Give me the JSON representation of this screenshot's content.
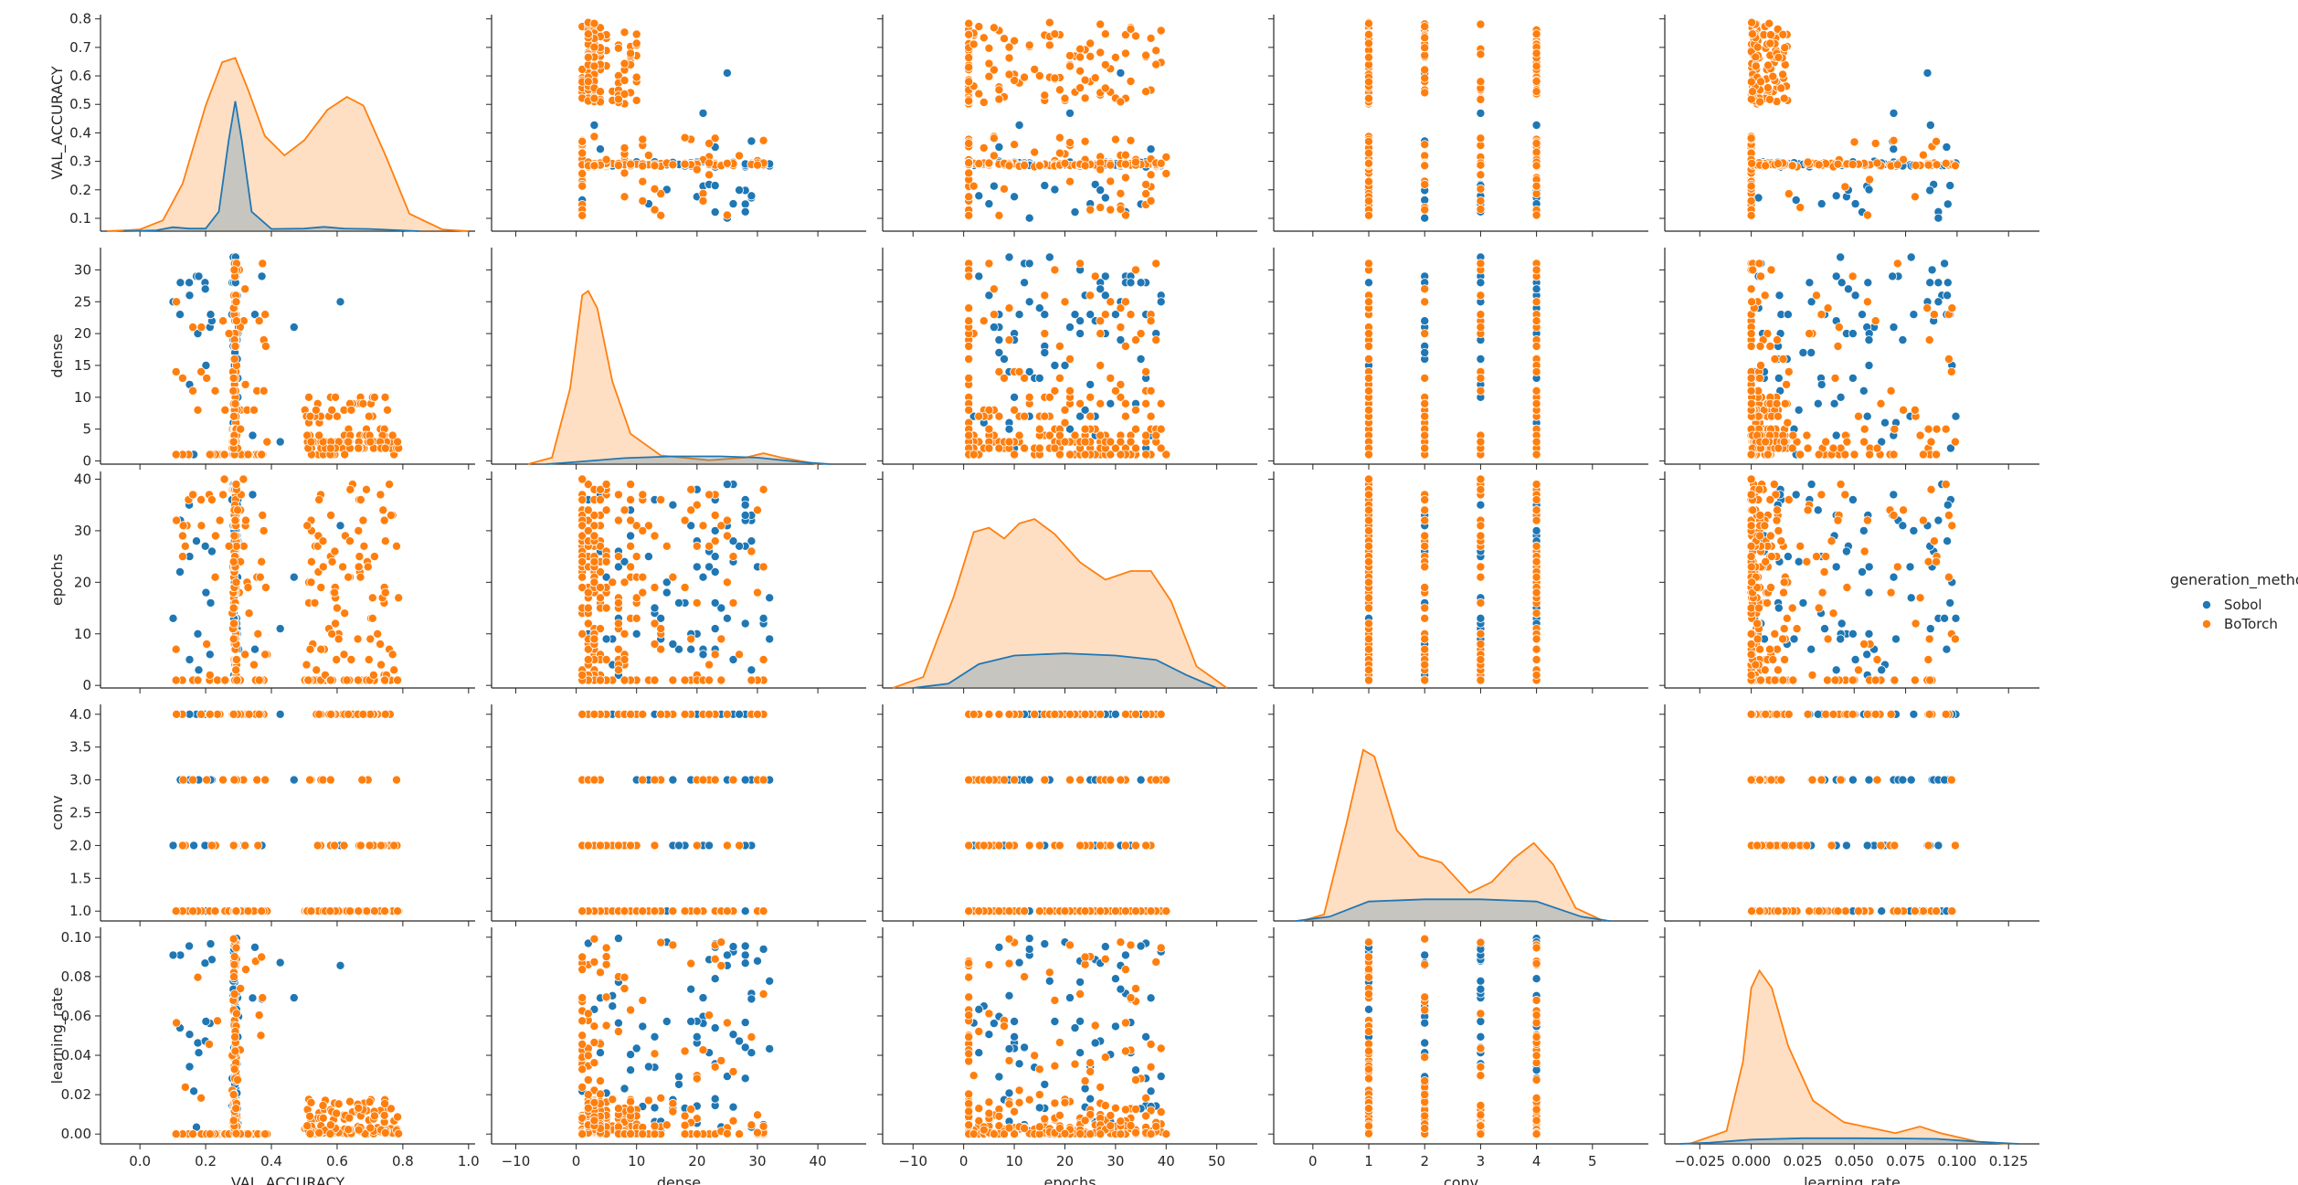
{
  "chart_data": {
    "type": "pairplot",
    "variables": [
      "VAL_ACCURACY",
      "dense",
      "epochs",
      "conv",
      "learning_rate"
    ],
    "hue": "generation_method",
    "legend": {
      "title": "generation_method",
      "placement": "right",
      "entries": [
        {
          "label": "Sobol",
          "color": "#1f77b4"
        },
        {
          "label": "BoTorch",
          "color": "#ff7f0e"
        }
      ]
    },
    "axes": {
      "VAL_ACCURACY": {
        "range": [
          -0.12,
          1.02
        ],
        "ticks": [
          0.0,
          0.2,
          0.4,
          0.6,
          0.8,
          1.0
        ],
        "y_range": [
          0.055,
          0.815
        ],
        "y_ticks": [
          0.1,
          0.2,
          0.3,
          0.4,
          0.5,
          0.6,
          0.7,
          0.8
        ]
      },
      "dense": {
        "range": [
          -14,
          48
        ],
        "ticks": [
          -10,
          0,
          10,
          20,
          30,
          40
        ],
        "y_range": [
          -0.5,
          33.5
        ],
        "y_ticks": [
          0,
          5,
          10,
          15,
          20,
          25,
          30
        ]
      },
      "epochs": {
        "range": [
          -16,
          58
        ],
        "ticks": [
          -10,
          0,
          10,
          20,
          30,
          40,
          50
        ],
        "y_range": [
          -0.5,
          41.5
        ],
        "y_ticks": [
          0,
          10,
          20,
          30,
          40
        ]
      },
      "conv": {
        "range": [
          -0.7,
          6.0
        ],
        "ticks": [
          0,
          1,
          2,
          3,
          4,
          5
        ],
        "y_range": [
          0.85,
          4.15
        ],
        "y_ticks": [
          1.0,
          1.5,
          2.0,
          2.5,
          3.0,
          3.5,
          4.0
        ]
      },
      "learning_rate": {
        "range": [
          -0.042,
          0.14
        ],
        "ticks": [
          -0.025,
          0.0,
          0.025,
          0.05,
          0.075,
          0.1,
          0.125
        ],
        "y_range": [
          -0.005,
          0.105
        ],
        "y_ticks": [
          0.0,
          0.02,
          0.04,
          0.06,
          0.08,
          0.1
        ]
      }
    },
    "tick_labels": {
      "VAL_ACCURACY": [
        "0.0",
        "0.2",
        "0.4",
        "0.6",
        "0.8",
        "1.0"
      ],
      "dense": [
        "−10",
        "0",
        "10",
        "20",
        "30",
        "40"
      ],
      "epochs": [
        "−10",
        "0",
        "10",
        "20",
        "30",
        "40",
        "50"
      ],
      "conv": [
        "0",
        "1",
        "2",
        "3",
        "4",
        "5"
      ],
      "learning_rate": [
        "−0.025",
        "0.000",
        "0.025",
        "0.050",
        "0.075",
        "0.100",
        "0.125"
      ],
      "y": {
        "VAL_ACCURACY": [
          "0.1",
          "0.2",
          "0.3",
          "0.4",
          "0.5",
          "0.6",
          "0.7",
          "0.8"
        ],
        "dense": [
          "0",
          "5",
          "10",
          "15",
          "20",
          "25",
          "30"
        ],
        "epochs": [
          "0",
          "10",
          "20",
          "30",
          "40"
        ],
        "conv": [
          "1.0",
          "1.5",
          "2.0",
          "2.5",
          "3.0",
          "3.5",
          "4.0"
        ],
        "learning_rate": [
          "0.00",
          "0.02",
          "0.04",
          "0.06",
          "0.08",
          "0.10"
        ]
      }
    },
    "diag_kde": {
      "VAL_ACCURACY": {
        "Sobol": [
          [
            -0.05,
            0
          ],
          [
            0.05,
            0.004
          ],
          [
            0.1,
            0.018
          ],
          [
            0.15,
            0.012
          ],
          [
            0.2,
            0.012
          ],
          [
            0.24,
            0.09
          ],
          [
            0.27,
            0.42
          ],
          [
            0.29,
            0.6
          ],
          [
            0.31,
            0.42
          ],
          [
            0.34,
            0.09
          ],
          [
            0.4,
            0.01
          ],
          [
            0.5,
            0.012
          ],
          [
            0.56,
            0.02
          ],
          [
            0.62,
            0.012
          ],
          [
            0.7,
            0.01
          ],
          [
            0.85,
            0
          ]
        ],
        "BoTorch": [
          [
            -0.1,
            0
          ],
          [
            0,
            0.008
          ],
          [
            0.07,
            0.05
          ],
          [
            0.13,
            0.22
          ],
          [
            0.2,
            0.58
          ],
          [
            0.25,
            0.78
          ],
          [
            0.29,
            0.8
          ],
          [
            0.33,
            0.65
          ],
          [
            0.38,
            0.44
          ],
          [
            0.44,
            0.35
          ],
          [
            0.5,
            0.42
          ],
          [
            0.57,
            0.56
          ],
          [
            0.63,
            0.62
          ],
          [
            0.68,
            0.58
          ],
          [
            0.75,
            0.34
          ],
          [
            0.82,
            0.08
          ],
          [
            0.92,
            0.008
          ],
          [
            1.0,
            0
          ]
        ]
      },
      "dense": {
        "Sobol": [
          [
            -5,
            0
          ],
          [
            0,
            0.01
          ],
          [
            8,
            0.028
          ],
          [
            16,
            0.036
          ],
          [
            24,
            0.036
          ],
          [
            30,
            0.03
          ],
          [
            37,
            0.01
          ],
          [
            42,
            0
          ]
        ],
        "BoTorch": [
          [
            -8,
            0
          ],
          [
            -4,
            0.03
          ],
          [
            -1,
            0.35
          ],
          [
            1,
            0.78
          ],
          [
            2,
            0.8
          ],
          [
            3.5,
            0.72
          ],
          [
            6,
            0.38
          ],
          [
            9,
            0.14
          ],
          [
            14,
            0.04
          ],
          [
            22,
            0.018
          ],
          [
            28,
            0.03
          ],
          [
            31,
            0.05
          ],
          [
            34,
            0.03
          ],
          [
            40,
            0
          ]
        ]
      },
      "epochs": {
        "Sobol": [
          [
            -10,
            0
          ],
          [
            -3,
            0.02
          ],
          [
            3,
            0.11
          ],
          [
            10,
            0.15
          ],
          [
            20,
            0.16
          ],
          [
            30,
            0.15
          ],
          [
            38,
            0.13
          ],
          [
            44,
            0.06
          ],
          [
            50,
            0
          ]
        ],
        "BoTorch": [
          [
            -14,
            0
          ],
          [
            -8,
            0.05
          ],
          [
            -2,
            0.42
          ],
          [
            2,
            0.72
          ],
          [
            5,
            0.74
          ],
          [
            8,
            0.69
          ],
          [
            11,
            0.76
          ],
          [
            14,
            0.78
          ],
          [
            18,
            0.71
          ],
          [
            23,
            0.58
          ],
          [
            28,
            0.5
          ],
          [
            33,
            0.54
          ],
          [
            37,
            0.54
          ],
          [
            41,
            0.4
          ],
          [
            46,
            0.1
          ],
          [
            52,
            0
          ]
        ]
      },
      "conv": {
        "Sobol": [
          [
            -0.3,
            0
          ],
          [
            0.3,
            0.02
          ],
          [
            1,
            0.09
          ],
          [
            2,
            0.1
          ],
          [
            3,
            0.1
          ],
          [
            4,
            0.09
          ],
          [
            4.8,
            0.02
          ],
          [
            5.3,
            0
          ]
        ],
        "BoTorch": [
          [
            -0.2,
            0
          ],
          [
            0.2,
            0.03
          ],
          [
            0.6,
            0.45
          ],
          [
            0.9,
            0.79
          ],
          [
            1.1,
            0.76
          ],
          [
            1.5,
            0.42
          ],
          [
            1.9,
            0.3
          ],
          [
            2.3,
            0.27
          ],
          [
            2.8,
            0.13
          ],
          [
            3.2,
            0.18
          ],
          [
            3.6,
            0.29
          ],
          [
            3.95,
            0.36
          ],
          [
            4.3,
            0.26
          ],
          [
            4.7,
            0.06
          ],
          [
            5.2,
            0
          ]
        ]
      },
      "learning_rate": {
        "Sobol": [
          [
            -0.035,
            0
          ],
          [
            -0.02,
            0.006
          ],
          [
            0,
            0.02
          ],
          [
            0.025,
            0.026
          ],
          [
            0.05,
            0.026
          ],
          [
            0.075,
            0.025
          ],
          [
            0.09,
            0.023
          ],
          [
            0.11,
            0.01
          ],
          [
            0.13,
            0
          ]
        ],
        "BoTorch": [
          [
            -0.03,
            0
          ],
          [
            -0.012,
            0.06
          ],
          [
            -0.004,
            0.38
          ],
          [
            0,
            0.72
          ],
          [
            0.004,
            0.8
          ],
          [
            0.01,
            0.72
          ],
          [
            0.018,
            0.45
          ],
          [
            0.03,
            0.2
          ],
          [
            0.045,
            0.1
          ],
          [
            0.06,
            0.07
          ],
          [
            0.07,
            0.05
          ],
          [
            0.082,
            0.08
          ],
          [
            0.092,
            0.05
          ],
          [
            0.11,
            0.01
          ],
          [
            0.125,
            0
          ]
        ]
      }
    }
  }
}
